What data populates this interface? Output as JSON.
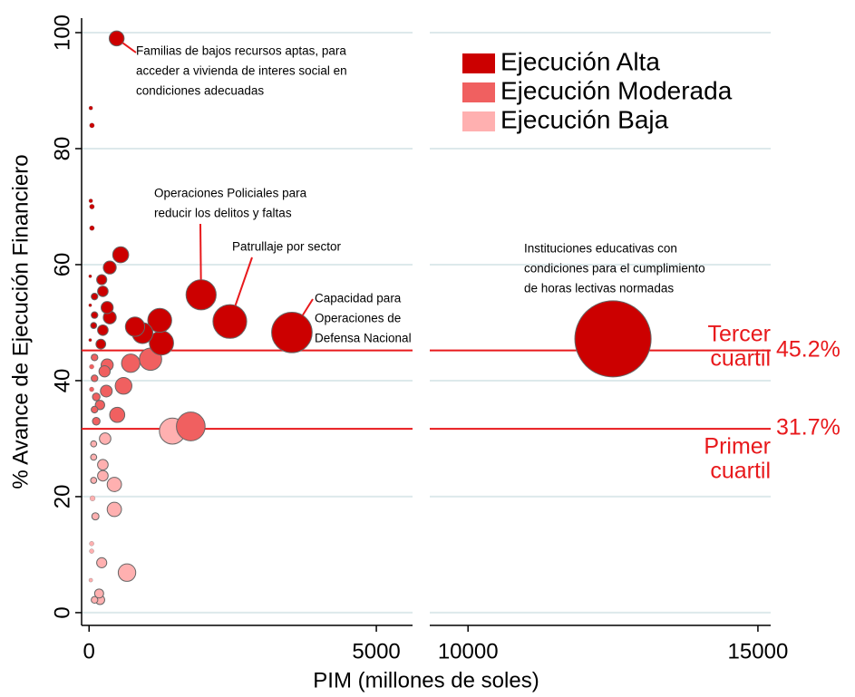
{
  "chart_data": {
    "type": "scatter",
    "xlabel": "PIM (millones de soles)",
    "ylabel": "% Avance de Ejecución Financiero",
    "ylim": [
      -2.2,
      102.5
    ],
    "yticks": [
      0,
      20,
      40,
      60,
      80,
      100
    ],
    "grid": true,
    "legend": "upper right",
    "panels": [
      {
        "xlim": [
          -130,
          5630
        ],
        "xticks": [
          0,
          5000
        ]
      },
      {
        "xlim": [
          9340,
          15220
        ],
        "xticks": [
          10000,
          15000
        ]
      }
    ],
    "series": [
      {
        "name": "Ejecución Baja",
        "color": "#ffb0b0",
        "x": [
          1450,
          660,
          440,
          440,
          280,
          240,
          240,
          220,
          175,
          190,
          95,
          110,
          80,
          60,
          45,
          45,
          80,
          80,
          30
        ],
        "values": [
          31.3,
          6.9,
          17.8,
          22.1,
          30,
          25.5,
          23.6,
          8.6,
          3.3,
          2.2,
          2.2,
          16.6,
          22.8,
          19.7,
          11.9,
          10.6,
          26.8,
          29.1,
          5.6
        ]
      },
      {
        "name": "Ejecución Moderada",
        "color": "#f06060",
        "x": [
          1770,
          1070,
          725,
          600,
          490,
          315,
          270,
          300,
          190,
          95,
          95,
          125,
          95,
          125,
          45,
          45
        ],
        "values": [
          32.1,
          43.7,
          43,
          39.1,
          34.1,
          42.7,
          41.6,
          38.2,
          35.8,
          44,
          40.4,
          37.2,
          35,
          33,
          38.5,
          42.4
        ]
      },
      {
        "name": "Ejecución Alta",
        "color": "#cc0000",
        "x": [
          480,
          50,
          30,
          50,
          50,
          30,
          550,
          360,
          1950,
          2450,
          3530,
          12500,
          1230,
          1260,
          800,
          930,
          315,
          360,
          240,
          220,
          205,
          95,
          95,
          80,
          240,
          20,
          20,
          20
        ],
        "values": [
          99,
          84,
          87,
          70,
          66.3,
          71,
          61.7,
          59.5,
          54.8,
          50.2,
          48.3,
          47.2,
          50.4,
          46.5,
          49.3,
          48.2,
          52.6,
          50.9,
          55.4,
          57.4,
          46.3,
          54.5,
          51.3,
          49.5,
          48.7,
          58,
          53,
          47
        ]
      }
    ],
    "reference_lines": [
      {
        "value": 45.2,
        "label": "45.2%",
        "name": [
          "Tercer",
          "cuartil"
        ],
        "color": "#e8191c"
      },
      {
        "value": 31.7,
        "label": "31.7%",
        "name": [
          "Primer",
          "cuartil"
        ],
        "color": "#e8191c"
      }
    ],
    "annotations": [
      {
        "text": [
          "Familias de bajos recursos aptas, para",
          "acceder a vivienda de interes social en",
          "condiciones adecuadas"
        ]
      },
      {
        "text": [
          "Operaciones Policiales para",
          "reducir los delitos y faltas"
        ]
      },
      {
        "text": [
          "Patrullaje por sector"
        ]
      },
      {
        "text": [
          "Capacidad para",
          "Operaciones de",
          "Defensa Nacional"
        ]
      },
      {
        "text": [
          "Instituciones educativas con",
          "condiciones para el cumplimiento",
          "de horas lectivas normadas"
        ]
      }
    ]
  }
}
